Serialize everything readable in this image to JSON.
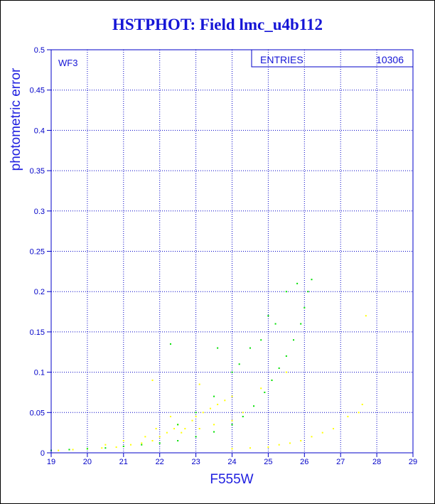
{
  "title": "HSTPHOT: Field lmc_u4b112",
  "chart_data": {
    "type": "scatter",
    "title": "HSTPHOT: Field lmc_u4b112",
    "xlabel": "F555W",
    "ylabel": "photometric error",
    "xlim": [
      19,
      29
    ],
    "ylim": [
      0,
      0.5
    ],
    "x_ticks": [
      19,
      20,
      21,
      22,
      23,
      24,
      25,
      26,
      27,
      28,
      29
    ],
    "y_ticks": [
      0,
      0.05,
      0.1,
      0.15,
      0.2,
      0.25,
      0.3,
      0.35,
      0.4,
      0.45,
      0.5
    ],
    "y_tick_labels": [
      "0",
      "0.05",
      "0.1",
      "0.15",
      "0.2",
      "0.25",
      "0.3",
      "0.35",
      "0.4",
      "0.45",
      "0.5"
    ],
    "grid": "dotted",
    "chip_label": "WF3",
    "stats_box": {
      "label": "ENTRIES",
      "value": "10306"
    },
    "series": [
      {
        "color": "#ffff00",
        "points": [
          [
            19.2,
            0.003
          ],
          [
            19.6,
            0.004
          ],
          [
            20.0,
            0.005
          ],
          [
            20.4,
            0.006
          ],
          [
            20.8,
            0.007
          ],
          [
            21.2,
            0.01
          ],
          [
            21.5,
            0.012
          ],
          [
            21.8,
            0.015
          ],
          [
            22.0,
            0.02
          ],
          [
            22.2,
            0.025
          ],
          [
            22.4,
            0.03
          ],
          [
            22.5,
            0.035
          ],
          [
            22.7,
            0.03
          ],
          [
            22.9,
            0.04
          ],
          [
            23.0,
            0.045
          ],
          [
            23.2,
            0.05
          ],
          [
            23.4,
            0.055
          ],
          [
            23.6,
            0.06
          ],
          [
            23.8,
            0.065
          ],
          [
            24.0,
            0.07
          ],
          [
            22.3,
            0.045
          ],
          [
            21.9,
            0.03
          ],
          [
            21.6,
            0.02
          ],
          [
            21.0,
            0.015
          ],
          [
            20.5,
            0.01
          ],
          [
            23.5,
            0.035
          ],
          [
            24.0,
            0.04
          ],
          [
            24.3,
            0.05
          ],
          [
            22.6,
            0.025
          ],
          [
            23.1,
            0.03
          ],
          [
            21.8,
            0.09
          ],
          [
            23.1,
            0.085
          ],
          [
            25.3,
            0.01
          ],
          [
            25.6,
            0.012
          ],
          [
            25.9,
            0.015
          ],
          [
            26.2,
            0.02
          ],
          [
            26.5,
            0.025
          ],
          [
            26.8,
            0.03
          ],
          [
            27.2,
            0.045
          ],
          [
            27.5,
            0.05
          ],
          [
            27.6,
            0.06
          ],
          [
            27.7,
            0.17
          ],
          [
            24.0,
            0.005
          ],
          [
            24.5,
            0.006
          ],
          [
            25.0,
            0.007
          ],
          [
            24.8,
            0.08
          ],
          [
            25.1,
            0.09
          ],
          [
            25.5,
            0.1
          ]
        ]
      },
      {
        "color": "#00e000",
        "points": [
          [
            19.0,
            0.003
          ],
          [
            19.5,
            0.004
          ],
          [
            20.0,
            0.005
          ],
          [
            20.5,
            0.006
          ],
          [
            21.0,
            0.008
          ],
          [
            21.5,
            0.01
          ],
          [
            22.0,
            0.012
          ],
          [
            22.5,
            0.015
          ],
          [
            23.0,
            0.02
          ],
          [
            23.5,
            0.026
          ],
          [
            24.0,
            0.035
          ],
          [
            24.3,
            0.045
          ],
          [
            24.6,
            0.058
          ],
          [
            24.9,
            0.075
          ],
          [
            25.1,
            0.09
          ],
          [
            25.3,
            0.105
          ],
          [
            25.5,
            0.12
          ],
          [
            25.7,
            0.14
          ],
          [
            25.9,
            0.16
          ],
          [
            26.0,
            0.18
          ],
          [
            26.1,
            0.2
          ],
          [
            26.2,
            0.215
          ],
          [
            25.8,
            0.21
          ],
          [
            25.5,
            0.2
          ],
          [
            25.0,
            0.17
          ],
          [
            24.5,
            0.13
          ],
          [
            24.0,
            0.1
          ],
          [
            23.5,
            0.07
          ],
          [
            23.0,
            0.05
          ],
          [
            22.5,
            0.035
          ],
          [
            22.3,
            0.135
          ],
          [
            23.6,
            0.13
          ],
          [
            24.2,
            0.11
          ],
          [
            24.8,
            0.14
          ],
          [
            25.2,
            0.16
          ]
        ]
      }
    ]
  }
}
